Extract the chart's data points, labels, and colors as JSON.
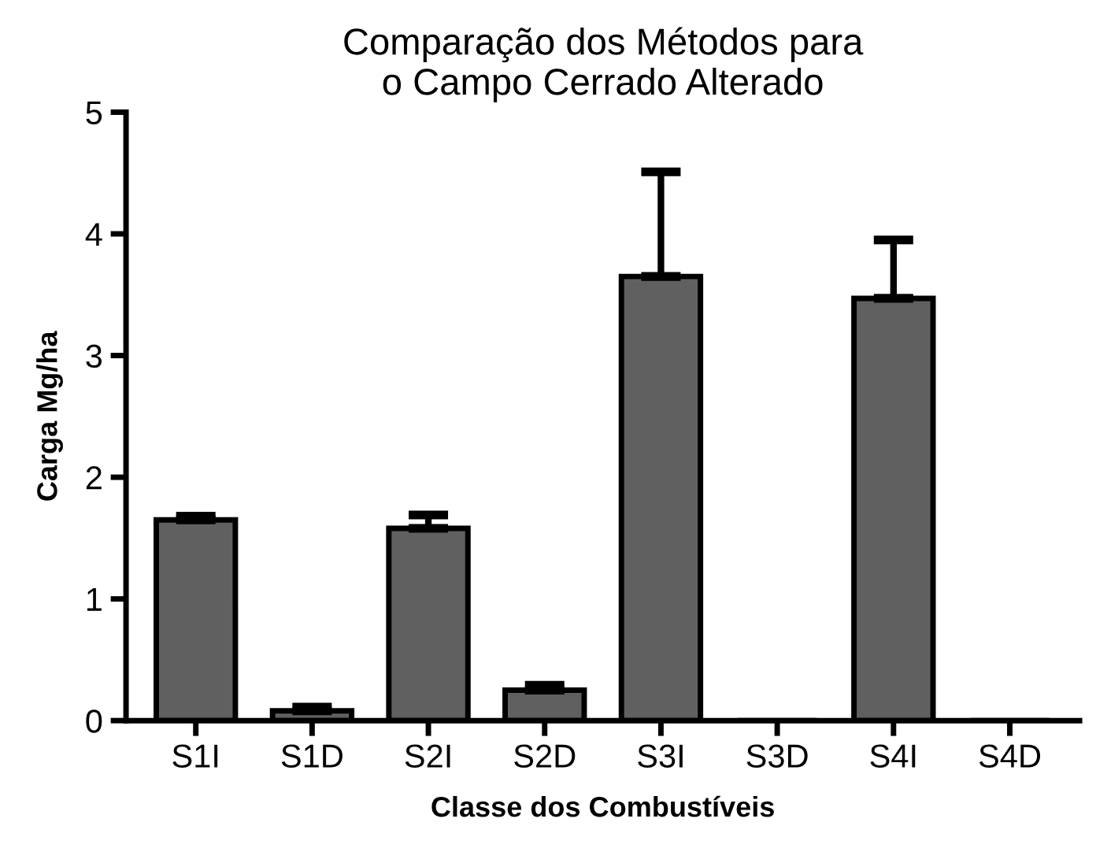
{
  "chart_data": {
    "type": "bar",
    "title": "Comparação dos Métodos para\no Campo Cerrado Alterado",
    "xlabel": "Classe dos Combustíveis",
    "ylabel": "Carga Mg/ha",
    "categories": [
      "S1I",
      "S1D",
      "S2I",
      "S2D",
      "S3I",
      "S3D",
      "S4I",
      "S4D"
    ],
    "values": [
      1.65,
      0.08,
      1.58,
      0.25,
      3.65,
      0,
      3.47,
      0
    ],
    "errors": [
      0.03,
      0.03,
      0.11,
      0.04,
      0.86,
      null,
      0.48,
      null
    ],
    "color": "#606060",
    "ylim": [
      0,
      5
    ],
    "yticks": [
      0,
      1,
      2,
      3,
      4,
      5
    ],
    "grid": false
  }
}
